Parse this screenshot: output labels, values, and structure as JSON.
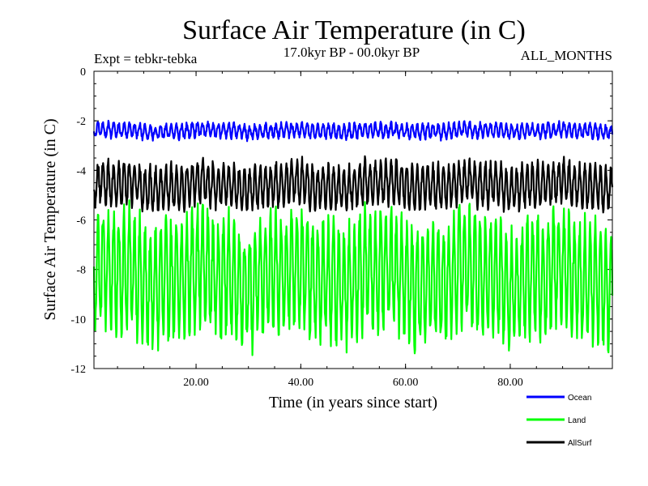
{
  "chart_data": {
    "type": "line",
    "title": "Surface Air Temperature (in C)",
    "subtitle": "17.0kyr BP - 00.0kyr BP",
    "experiment_label": "Expt = tebkr-tebka",
    "period_label": "ALL_MONTHS",
    "xlabel": "Time (in years since start)",
    "ylabel": "Surface Air Temperature (in C)",
    "xlim": [
      0.5,
      99.5
    ],
    "ylim": [
      -12,
      0
    ],
    "x_ticks": [
      20,
      40,
      60,
      80
    ],
    "x_tick_labels": [
      "20.00",
      "40.00",
      "60.00",
      "80.00"
    ],
    "y_ticks": [
      0,
      -2,
      -4,
      -6,
      -8,
      -10,
      -12
    ],
    "y_tick_labels": [
      "0",
      "-2",
      "-4",
      "-6",
      "-8",
      "-10",
      "-12"
    ],
    "series": [
      {
        "name": "Ocean",
        "color": "#0000ff",
        "mean": -2.4,
        "amplitude": 0.25,
        "noise": 0.12,
        "min": -3.2,
        "max": -1.8
      },
      {
        "name": "Land",
        "color": "#00ff00",
        "mean": -8.3,
        "amplitude": 2.2,
        "noise": 0.6,
        "min": -11.8,
        "max": -5.0
      },
      {
        "name": "AllSurf",
        "color": "#000000",
        "mean": -4.6,
        "amplitude": 0.8,
        "noise": 0.25,
        "min": -5.9,
        "max": -3.1
      }
    ],
    "samples_per_year": 12,
    "legend_position": "bottom-right"
  }
}
